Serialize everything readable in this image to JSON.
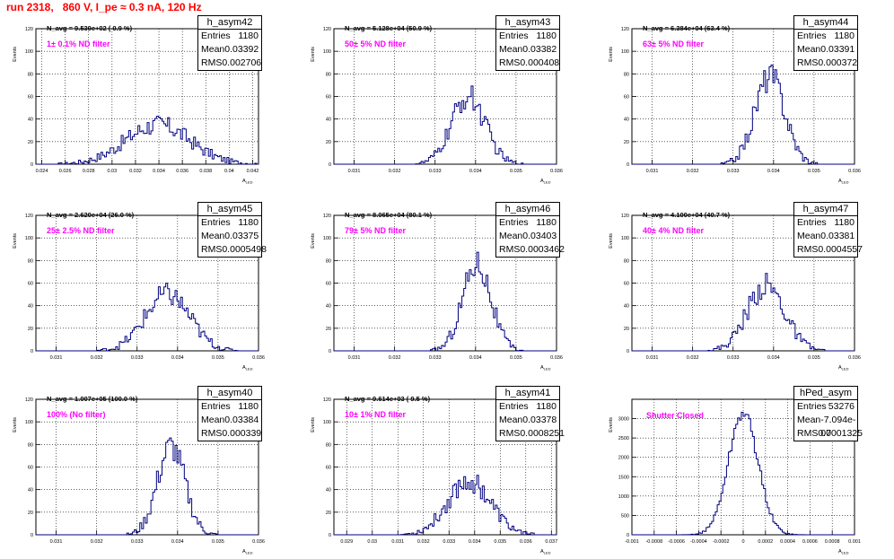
{
  "title": "run 2318,   860 V, I_pe ≈ 0.3 nA, 120 Hz",
  "axis_y_label": "Events",
  "axis_x_label": "A",
  "axis_x_sub": "LED",
  "stat_labels": {
    "entries": "Entries",
    "mean": "Mean",
    "rms": "RMS"
  },
  "colors": {
    "hist": "#000080",
    "title": "#ff0000",
    "filter": "#ff00ff",
    "grid": "#000000"
  },
  "chart_data": [
    {
      "type": "bar",
      "name": "h_asym42",
      "navg": "N_avg = 9.539e+02 ( 0.9 %)",
      "filter": "1± 0.1% ND filter",
      "entries": "1180",
      "mean": "0.03392",
      "rms": "0.002706",
      "xlim": [
        0.0235,
        0.0425
      ],
      "ylim": [
        0,
        120
      ],
      "xticks": [
        "0.024",
        "0.026",
        "0.028",
        "0.03",
        "0.032",
        "0.034",
        "0.036",
        "0.038",
        "0.04",
        "0.042"
      ],
      "yticks": [
        "0",
        "20",
        "40",
        "60",
        "80",
        "100",
        "120"
      ],
      "dist_mu": 0.0339,
      "dist_sigma": 0.00275,
      "dist_peak": 35
    },
    {
      "type": "bar",
      "name": "h_asym43",
      "navg": "N_avg = 5.128e+04 (50.9 %)",
      "filter": "50± 5% ND filter",
      "entries": "1180",
      "mean": "0.03382",
      "rms": "0.000408",
      "xlim": [
        0.0305,
        0.036
      ],
      "ylim": [
        0,
        120
      ],
      "xticks": [
        "0.031",
        "0.032",
        "0.033",
        "0.034",
        "0.035",
        "0.036"
      ],
      "yticks": [
        "0",
        "20",
        "40",
        "60",
        "80",
        "100",
        "120"
      ],
      "dist_mu": 0.03382,
      "dist_sigma": 0.00041,
      "dist_peak": 60
    },
    {
      "type": "bar",
      "name": "h_asym44",
      "navg": "N_avg = 6.384e+04 (63.4 %)",
      "filter": "63± 5% ND filter",
      "entries": "1180",
      "mean": "0.03391",
      "rms": "0.000372",
      "xlim": [
        0.0305,
        0.036
      ],
      "ylim": [
        0,
        120
      ],
      "xticks": [
        "0.031",
        "0.032",
        "0.033",
        "0.034",
        "0.035",
        "0.036"
      ],
      "yticks": [
        "0",
        "20",
        "40",
        "60",
        "80",
        "100",
        "120"
      ],
      "dist_mu": 0.03391,
      "dist_sigma": 0.00037,
      "dist_peak": 78
    },
    {
      "type": "bar",
      "name": "h_asym45",
      "navg": "N_avg = 2.620e+04 (26.0 %)",
      "filter": "25± 2.5% ND filter",
      "entries": "1180",
      "mean": "0.03375",
      "rms": "0.0005498",
      "xlim": [
        0.0305,
        0.036
      ],
      "ylim": [
        0,
        120
      ],
      "xticks": [
        "0.031",
        "0.032",
        "0.033",
        "0.034",
        "0.035",
        "0.036"
      ],
      "yticks": [
        "0",
        "20",
        "40",
        "60",
        "80",
        "100",
        "120"
      ],
      "dist_mu": 0.03375,
      "dist_sigma": 0.00055,
      "dist_peak": 50
    },
    {
      "type": "bar",
      "name": "h_asym46",
      "navg": "N_avg = 8.065e+04 (80.1 %)",
      "filter": "79± 5% ND filter",
      "entries": "1180",
      "mean": "0.03403",
      "rms": "0.0003462",
      "xlim": [
        0.0305,
        0.036
      ],
      "ylim": [
        0,
        120
      ],
      "xticks": [
        "0.031",
        "0.032",
        "0.033",
        "0.034",
        "0.035",
        "0.036"
      ],
      "yticks": [
        "0",
        "20",
        "40",
        "60",
        "80",
        "100",
        "120"
      ],
      "dist_mu": 0.03403,
      "dist_sigma": 0.00035,
      "dist_peak": 78
    },
    {
      "type": "bar",
      "name": "h_asym47",
      "navg": "N_avg = 4.100e+04 (40.7 %)",
      "filter": "40± 4% ND filter",
      "entries": "1180",
      "mean": "0.03381",
      "rms": "0.0004557",
      "xlim": [
        0.0305,
        0.036
      ],
      "ylim": [
        0,
        120
      ],
      "xticks": [
        "0.031",
        "0.032",
        "0.033",
        "0.034",
        "0.035",
        "0.036"
      ],
      "yticks": [
        "0",
        "20",
        "40",
        "60",
        "80",
        "100",
        "120"
      ],
      "dist_mu": 0.03381,
      "dist_sigma": 0.00046,
      "dist_peak": 58
    },
    {
      "type": "bar",
      "name": "h_asym40",
      "navg": "N_avg = 1.007e+05 (100.0 %)",
      "filter": "100% (No filter)",
      "entries": "1180",
      "mean": "0.03384",
      "rms": "0.000339",
      "xlim": [
        0.0305,
        0.036
      ],
      "ylim": [
        0,
        120
      ],
      "xticks": [
        "0.031",
        "0.032",
        "0.033",
        "0.034",
        "0.035",
        "0.036"
      ],
      "yticks": [
        "0",
        "20",
        "40",
        "60",
        "80",
        "100",
        "120"
      ],
      "dist_mu": 0.03384,
      "dist_sigma": 0.00034,
      "dist_peak": 78
    },
    {
      "type": "bar",
      "name": "h_asym41",
      "navg": "N_avg = 9.614e+03 ( 9.5 %)",
      "filter": "10± 1% ND filter",
      "entries": "1180",
      "mean": "0.03378",
      "rms": "0.0008251",
      "xlim": [
        0.0285,
        0.0372
      ],
      "ylim": [
        0,
        120
      ],
      "xticks": [
        "0.029",
        "0.03",
        "0.031",
        "0.032",
        "0.033",
        "0.034",
        "0.035",
        "0.036",
        "0.037"
      ],
      "yticks": [
        "0",
        "20",
        "40",
        "60",
        "80",
        "100",
        "120"
      ],
      "dist_mu": 0.03378,
      "dist_sigma": 0.00083,
      "dist_peak": 48
    },
    {
      "type": "bar",
      "name": "hPed_asym",
      "navg": "",
      "filter": "Shutter Closed",
      "entries": "53276",
      "mean": "-7.094e-07",
      "rms": "0.0001325",
      "xlim": [
        -0.001,
        0.001
      ],
      "ylim": [
        0,
        3500
      ],
      "xticks": [
        "-0.001",
        "-0.0008",
        "-0.0006",
        "-0.0004",
        "-0.0002",
        "0",
        "0.0002",
        "0.0004",
        "0.0006",
        "0.0008",
        "0.001"
      ],
      "yticks": [
        "0",
        "500",
        "1000",
        "1500",
        "2000",
        "2500",
        "3000"
      ],
      "dist_mu": 0.0,
      "dist_sigma": 0.0001325,
      "dist_peak": 3150
    }
  ]
}
